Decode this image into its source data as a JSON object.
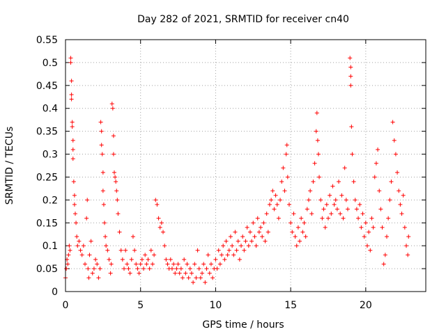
{
  "chart_data": {
    "type": "scatter",
    "title": "Day 282 of 2021, SRMTID for receiver cn40",
    "xlabel": "GPS time / hours",
    "ylabel": "SRMTID / TECUs",
    "xlim": [
      0,
      24
    ],
    "ylim": [
      0,
      0.55
    ],
    "xticks": [
      0,
      5,
      10,
      15,
      20
    ],
    "xtick_labels": [
      "0",
      "5",
      "10",
      "15",
      "20"
    ],
    "yticks": [
      0,
      0.05,
      0.1,
      0.15,
      0.2,
      0.25,
      0.3,
      0.35,
      0.4,
      0.45,
      0.5,
      0.55
    ],
    "ytick_labels": [
      "0",
      "0.05",
      "0.1",
      "0.15",
      "0.2",
      "0.25",
      "0.3",
      "0.35",
      "0.4",
      "0.45",
      "0.5",
      "0.55"
    ],
    "grid": true,
    "marker": "+",
    "marker_color": "#ff0000",
    "series": [
      {
        "name": "SRMTID",
        "points": [
          [
            0.0,
            0.03
          ],
          [
            0.05,
            0.05
          ],
          [
            0.1,
            0.07
          ],
          [
            0.15,
            0.06
          ],
          [
            0.2,
            0.08
          ],
          [
            0.25,
            0.1
          ],
          [
            0.3,
            0.09
          ],
          [
            0.35,
            0.51
          ],
          [
            0.35,
            0.5
          ],
          [
            0.4,
            0.46
          ],
          [
            0.4,
            0.43
          ],
          [
            0.4,
            0.42
          ],
          [
            0.45,
            0.37
          ],
          [
            0.45,
            0.36
          ],
          [
            0.5,
            0.33
          ],
          [
            0.5,
            0.31
          ],
          [
            0.5,
            0.29
          ],
          [
            0.55,
            0.24
          ],
          [
            0.6,
            0.21
          ],
          [
            0.6,
            0.19
          ],
          [
            0.65,
            0.17
          ],
          [
            0.7,
            0.15
          ],
          [
            0.75,
            0.12
          ],
          [
            0.8,
            0.1
          ],
          [
            0.9,
            0.11
          ],
          [
            1.0,
            0.09
          ],
          [
            1.1,
            0.08
          ],
          [
            1.2,
            0.1
          ],
          [
            1.3,
            0.06
          ],
          [
            1.4,
            0.16
          ],
          [
            1.45,
            0.2
          ],
          [
            1.5,
            0.05
          ],
          [
            1.55,
            0.03
          ],
          [
            1.6,
            0.08
          ],
          [
            1.7,
            0.11
          ],
          [
            1.8,
            0.04
          ],
          [
            1.9,
            0.05
          ],
          [
            2.0,
            0.07
          ],
          [
            2.1,
            0.06
          ],
          [
            2.2,
            0.03
          ],
          [
            2.3,
            0.05
          ],
          [
            2.35,
            0.37
          ],
          [
            2.4,
            0.35
          ],
          [
            2.4,
            0.32
          ],
          [
            2.45,
            0.3
          ],
          [
            2.5,
            0.26
          ],
          [
            2.5,
            0.22
          ],
          [
            2.55,
            0.19
          ],
          [
            2.6,
            0.15
          ],
          [
            2.65,
            0.12
          ],
          [
            2.7,
            0.1
          ],
          [
            2.8,
            0.09
          ],
          [
            2.9,
            0.07
          ],
          [
            3.0,
            0.04
          ],
          [
            3.05,
            0.06
          ],
          [
            3.1,
            0.41
          ],
          [
            3.15,
            0.4
          ],
          [
            3.2,
            0.34
          ],
          [
            3.2,
            0.3
          ],
          [
            3.25,
            0.26
          ],
          [
            3.3,
            0.25
          ],
          [
            3.35,
            0.24
          ],
          [
            3.4,
            0.22
          ],
          [
            3.45,
            0.2
          ],
          [
            3.5,
            0.17
          ],
          [
            3.6,
            0.13
          ],
          [
            3.7,
            0.09
          ],
          [
            3.8,
            0.07
          ],
          [
            3.9,
            0.05
          ],
          [
            4.0,
            0.09
          ],
          [
            4.1,
            0.06
          ],
          [
            4.2,
            0.05
          ],
          [
            4.3,
            0.04
          ],
          [
            4.4,
            0.07
          ],
          [
            4.5,
            0.12
          ],
          [
            4.6,
            0.09
          ],
          [
            4.7,
            0.06
          ],
          [
            4.8,
            0.05
          ],
          [
            4.9,
            0.04
          ],
          [
            5.0,
            0.06
          ],
          [
            5.1,
            0.07
          ],
          [
            5.2,
            0.05
          ],
          [
            5.3,
            0.08
          ],
          [
            5.4,
            0.06
          ],
          [
            5.5,
            0.07
          ],
          [
            5.6,
            0.05
          ],
          [
            5.7,
            0.09
          ],
          [
            5.8,
            0.06
          ],
          [
            5.9,
            0.08
          ],
          [
            6.0,
            0.2
          ],
          [
            6.1,
            0.19
          ],
          [
            6.2,
            0.16
          ],
          [
            6.3,
            0.14
          ],
          [
            6.4,
            0.15
          ],
          [
            6.5,
            0.13
          ],
          [
            6.6,
            0.1
          ],
          [
            6.7,
            0.07
          ],
          [
            6.8,
            0.06
          ],
          [
            6.9,
            0.05
          ],
          [
            7.0,
            0.07
          ],
          [
            7.1,
            0.05
          ],
          [
            7.2,
            0.06
          ],
          [
            7.3,
            0.04
          ],
          [
            7.4,
            0.05
          ],
          [
            7.5,
            0.06
          ],
          [
            7.6,
            0.04
          ],
          [
            7.7,
            0.05
          ],
          [
            7.8,
            0.03
          ],
          [
            7.9,
            0.07
          ],
          [
            8.0,
            0.04
          ],
          [
            8.1,
            0.06
          ],
          [
            8.2,
            0.03
          ],
          [
            8.3,
            0.05
          ],
          [
            8.4,
            0.04
          ],
          [
            8.5,
            0.02
          ],
          [
            8.6,
            0.06
          ],
          [
            8.7,
            0.03
          ],
          [
            8.8,
            0.09
          ],
          [
            8.9,
            0.05
          ],
          [
            9.0,
            0.03
          ],
          [
            9.1,
            0.04
          ],
          [
            9.2,
            0.06
          ],
          [
            9.3,
            0.02
          ],
          [
            9.4,
            0.05
          ],
          [
            9.5,
            0.08
          ],
          [
            9.6,
            0.04
          ],
          [
            9.7,
            0.06
          ],
          [
            9.8,
            0.03
          ],
          [
            9.9,
            0.05
          ],
          [
            10.0,
            0.07
          ],
          [
            10.1,
            0.05
          ],
          [
            10.2,
            0.09
          ],
          [
            10.3,
            0.06
          ],
          [
            10.4,
            0.08
          ],
          [
            10.5,
            0.1
          ],
          [
            10.6,
            0.07
          ],
          [
            10.7,
            0.11
          ],
          [
            10.8,
            0.08
          ],
          [
            10.9,
            0.09
          ],
          [
            11.0,
            0.12
          ],
          [
            11.1,
            0.1
          ],
          [
            11.2,
            0.08
          ],
          [
            11.3,
            0.13
          ],
          [
            11.4,
            0.09
          ],
          [
            11.5,
            0.11
          ],
          [
            11.6,
            0.07
          ],
          [
            11.7,
            0.1
          ],
          [
            11.8,
            0.12
          ],
          [
            11.9,
            0.09
          ],
          [
            12.0,
            0.11
          ],
          [
            12.1,
            0.14
          ],
          [
            12.2,
            0.1
          ],
          [
            12.3,
            0.13
          ],
          [
            12.4,
            0.11
          ],
          [
            12.5,
            0.15
          ],
          [
            12.6,
            0.12
          ],
          [
            12.7,
            0.1
          ],
          [
            12.8,
            0.16
          ],
          [
            12.9,
            0.13
          ],
          [
            13.0,
            0.14
          ],
          [
            13.1,
            0.12
          ],
          [
            13.2,
            0.15
          ],
          [
            13.3,
            0.11
          ],
          [
            13.4,
            0.17
          ],
          [
            13.5,
            0.13
          ],
          [
            13.6,
            0.19
          ],
          [
            13.7,
            0.2
          ],
          [
            13.8,
            0.22
          ],
          [
            13.9,
            0.18
          ],
          [
            14.0,
            0.21
          ],
          [
            14.1,
            0.19
          ],
          [
            14.2,
            0.16
          ],
          [
            14.3,
            0.2
          ],
          [
            14.4,
            0.24
          ],
          [
            14.5,
            0.27
          ],
          [
            14.6,
            0.22
          ],
          [
            14.7,
            0.3
          ],
          [
            14.75,
            0.32
          ],
          [
            14.8,
            0.25
          ],
          [
            14.9,
            0.19
          ],
          [
            15.0,
            0.15
          ],
          [
            15.1,
            0.13
          ],
          [
            15.2,
            0.17
          ],
          [
            15.3,
            0.12
          ],
          [
            15.4,
            0.1
          ],
          [
            15.5,
            0.14
          ],
          [
            15.6,
            0.11
          ],
          [
            15.7,
            0.16
          ],
          [
            15.8,
            0.13
          ],
          [
            15.9,
            0.15
          ],
          [
            16.0,
            0.12
          ],
          [
            16.1,
            0.18
          ],
          [
            16.2,
            0.2
          ],
          [
            16.3,
            0.22
          ],
          [
            16.4,
            0.17
          ],
          [
            16.5,
            0.24
          ],
          [
            16.6,
            0.28
          ],
          [
            16.7,
            0.35
          ],
          [
            16.75,
            0.39
          ],
          [
            16.8,
            0.33
          ],
          [
            16.85,
            0.3
          ],
          [
            16.9,
            0.25
          ],
          [
            17.0,
            0.2
          ],
          [
            17.1,
            0.16
          ],
          [
            17.2,
            0.18
          ],
          [
            17.3,
            0.14
          ],
          [
            17.4,
            0.19
          ],
          [
            17.5,
            0.16
          ],
          [
            17.6,
            0.21
          ],
          [
            17.7,
            0.17
          ],
          [
            17.8,
            0.23
          ],
          [
            17.9,
            0.19
          ],
          [
            18.0,
            0.2
          ],
          [
            18.1,
            0.18
          ],
          [
            18.2,
            0.24
          ],
          [
            18.3,
            0.17
          ],
          [
            18.4,
            0.21
          ],
          [
            18.5,
            0.16
          ],
          [
            18.6,
            0.27
          ],
          [
            18.7,
            0.2
          ],
          [
            18.8,
            0.18
          ],
          [
            18.95,
            0.51
          ],
          [
            19.0,
            0.49
          ],
          [
            19.0,
            0.47
          ],
          [
            19.0,
            0.45
          ],
          [
            19.05,
            0.36
          ],
          [
            19.1,
            0.3
          ],
          [
            19.2,
            0.24
          ],
          [
            19.3,
            0.2
          ],
          [
            19.4,
            0.18
          ],
          [
            19.5,
            0.16
          ],
          [
            19.6,
            0.19
          ],
          [
            19.7,
            0.14
          ],
          [
            19.8,
            0.17
          ],
          [
            19.9,
            0.12
          ],
          [
            20.0,
            0.15
          ],
          [
            20.1,
            0.1
          ],
          [
            20.2,
            0.13
          ],
          [
            20.3,
            0.09
          ],
          [
            20.4,
            0.16
          ],
          [
            20.5,
            0.14
          ],
          [
            20.6,
            0.25
          ],
          [
            20.7,
            0.28
          ],
          [
            20.8,
            0.31
          ],
          [
            20.9,
            0.22
          ],
          [
            21.0,
            0.18
          ],
          [
            21.1,
            0.14
          ],
          [
            21.2,
            0.06
          ],
          [
            21.3,
            0.08
          ],
          [
            21.4,
            0.12
          ],
          [
            21.5,
            0.16
          ],
          [
            21.6,
            0.2
          ],
          [
            21.7,
            0.24
          ],
          [
            21.8,
            0.37
          ],
          [
            21.9,
            0.33
          ],
          [
            22.0,
            0.3
          ],
          [
            22.1,
            0.26
          ],
          [
            22.2,
            0.22
          ],
          [
            22.3,
            0.19
          ],
          [
            22.4,
            0.17
          ],
          [
            22.5,
            0.21
          ],
          [
            22.6,
            0.14
          ],
          [
            22.7,
            0.1
          ],
          [
            22.8,
            0.08
          ],
          [
            22.85,
            0.12
          ]
        ]
      }
    ]
  }
}
